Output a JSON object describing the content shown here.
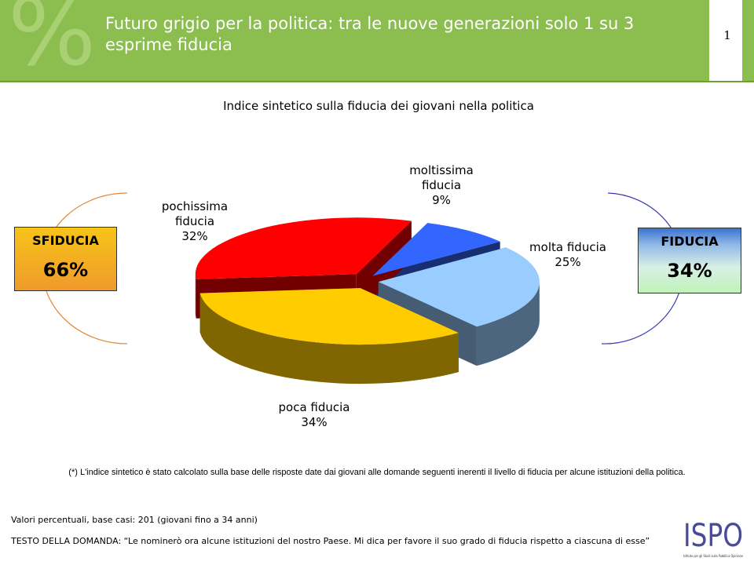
{
  "header": {
    "title": "Futuro grigio per la politica: tra le nuove generazioni solo 1 su 3 esprime fiducia",
    "page_number": "1"
  },
  "chart_data": {
    "type": "pie",
    "title": "Indice sintetico sulla fiducia dei giovani nella politica",
    "categories": [
      "moltissima fiducia",
      "molta fiducia",
      "poca fiducia",
      "pochissima fiducia"
    ],
    "values": [
      9,
      25,
      34,
      32
    ],
    "value_labels": [
      "9%",
      "25%",
      "34%",
      "32%"
    ],
    "colors": [
      "#3366ff",
      "#99ccff",
      "#ffcc00",
      "#ff0000"
    ],
    "exploded_3d": true
  },
  "summary_boxes": {
    "sfiducia": {
      "label": "SFIDUCIA",
      "value": "66%",
      "color": "#f5b21f"
    },
    "fiducia": {
      "label": "FIDUCIA",
      "value": "34%",
      "color": "#8fb8e6"
    }
  },
  "footnote": "(*) L'indice sintetico è stato calcolato sulla base delle risposte date dai giovani alle domande seguenti inerenti il livello di fiducia per alcune istituzioni della politica.",
  "base_note": "Valori percentuali, base casi: 201 (giovani fino a 34 anni)",
  "question_text": "TESTO DELLA DOMANDA: “Le nominerò ora alcune istituzioni del nostro Paese. Mi dica per favore il suo grado di fiducia rispetto a ciascuna di esse”",
  "logo": {
    "text": "ISPO",
    "tagline": "Istituto per gli Studi sulla Pubblica Opinione"
  }
}
